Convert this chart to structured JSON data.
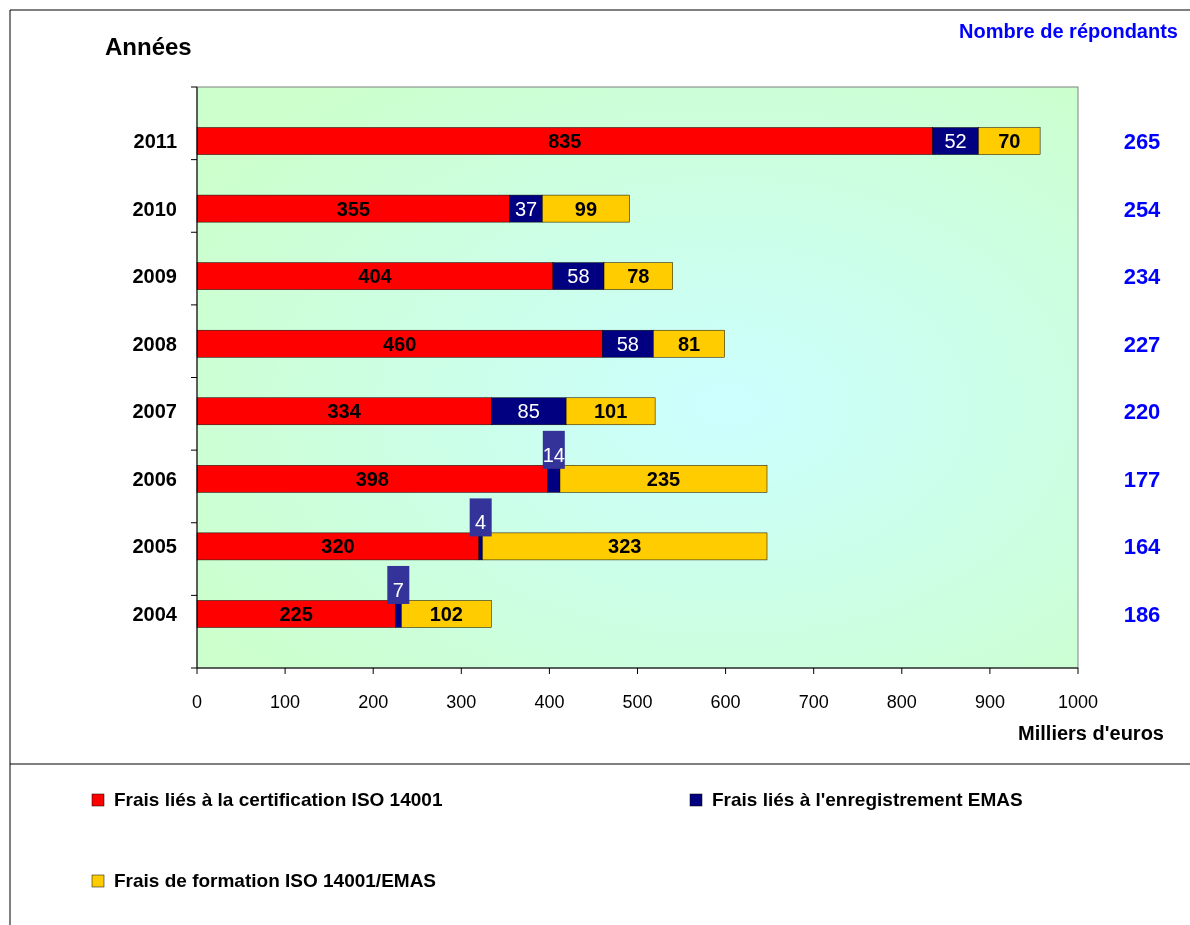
{
  "chart_data": {
    "type": "bar",
    "orientation": "horizontal",
    "stacked": true,
    "ylabel": "Années",
    "xlabel": "Milliers d'euros",
    "categories": [
      "2011",
      "2010",
      "2009",
      "2008",
      "2007",
      "2006",
      "2005",
      "2004"
    ],
    "series": [
      {
        "name": "Frais liés à la certification ISO 14001",
        "color": "#ff0000",
        "values": [
          835,
          355,
          404,
          460,
          334,
          398,
          320,
          225
        ]
      },
      {
        "name": "Frais liés à l'enregistrement EMAS",
        "color": "#000080",
        "values": [
          52,
          37,
          58,
          58,
          85,
          14,
          4,
          7
        ]
      },
      {
        "name": "Frais de formation ISO 14001/EMAS",
        "color": "#ffcc00",
        "values": [
          70,
          99,
          78,
          81,
          101,
          235,
          323,
          102
        ]
      }
    ],
    "xlim": [
      0,
      1000
    ],
    "xticks": [
      0,
      100,
      200,
      300,
      400,
      500,
      600,
      700,
      800,
      900,
      1000
    ],
    "data_labels": true,
    "grid": false,
    "legend": "bottom",
    "annotations": [
      "Nombre de répondants",
      "265",
      "254",
      "234",
      "227",
      "220",
      "177",
      "164",
      "186"
    ]
  }
}
